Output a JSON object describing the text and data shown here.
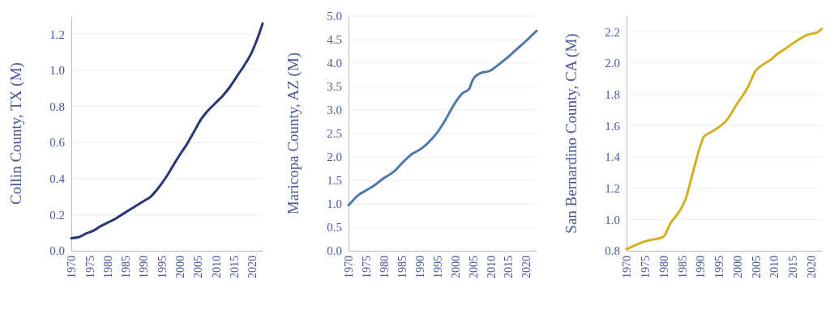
{
  "chart_data": [
    {
      "type": "line",
      "ylabel": "Collin County, TX (M)",
      "xlim": [
        1970,
        2023
      ],
      "xticks": [
        1970,
        1975,
        1980,
        1985,
        1990,
        1995,
        2000,
        2005,
        2010,
        2015,
        2020
      ],
      "ylim": [
        0,
        1.3
      ],
      "yticks": [
        {
          "value": 0,
          "label": "0.0"
        },
        0.2,
        0.4,
        0.6,
        0.8,
        {
          "value": 1,
          "label": "1.0"
        },
        1.2
      ],
      "grid": "y",
      "x": [
        1970,
        1972,
        1974,
        1976,
        1978,
        1980,
        1982,
        1984,
        1986,
        1988,
        1990,
        1992,
        1994,
        1996,
        1998,
        2000,
        2002,
        2004,
        2006,
        2008,
        2010,
        2012,
        2014,
        2016,
        2018,
        2020,
        2022,
        2023
      ],
      "series": [
        {
          "color": "#2b3577",
          "values": [
            0.07,
            0.075,
            0.095,
            0.11,
            0.135,
            0.155,
            0.175,
            0.2,
            0.225,
            0.25,
            0.275,
            0.3,
            0.345,
            0.4,
            0.465,
            0.53,
            0.59,
            0.66,
            0.73,
            0.78,
            0.82,
            0.86,
            0.91,
            0.97,
            1.03,
            1.1,
            1.2,
            1.26
          ]
        }
      ]
    },
    {
      "type": "line",
      "ylabel": "Maricopa County, AZ (M)",
      "xlim": [
        1970,
        2023
      ],
      "xticks": [
        1970,
        1975,
        1980,
        1985,
        1990,
        1995,
        2000,
        2005,
        2010,
        2015,
        2020
      ],
      "ylim": [
        0,
        5
      ],
      "yticks": [
        {
          "value": 0,
          "label": "0.0"
        },
        0.5,
        {
          "value": 1,
          "label": "1.0"
        },
        1.5,
        {
          "value": 2,
          "label": "2.0"
        },
        2.5,
        {
          "value": 3,
          "label": "3.0"
        },
        3.5,
        {
          "value": 4,
          "label": "4.0"
        },
        4.5,
        {
          "value": 5,
          "label": "5.0"
        }
      ],
      "grid": "y",
      "x": [
        1970,
        1973,
        1975,
        1977,
        1980,
        1983,
        1985,
        1988,
        1990,
        1992,
        1995,
        1997,
        2000,
        2002,
        2004,
        2005,
        2007,
        2010,
        2012,
        2015,
        2017,
        2020,
        2023
      ],
      "series": [
        {
          "color": "#4f79ad",
          "values": [
            0.97,
            1.2,
            1.29,
            1.38,
            1.55,
            1.7,
            1.86,
            2.07,
            2.15,
            2.27,
            2.52,
            2.75,
            3.15,
            3.35,
            3.45,
            3.64,
            3.78,
            3.84,
            3.95,
            4.13,
            4.27,
            4.47,
            4.69
          ]
        }
      ]
    },
    {
      "type": "line",
      "ylabel": "San Bernardino County, CA (M)",
      "xlim": [
        1970,
        2023
      ],
      "xticks": [
        1970,
        1975,
        1980,
        1985,
        1990,
        1995,
        2000,
        2005,
        2010,
        2015,
        2020
      ],
      "ylim": [
        0.8,
        2.3
      ],
      "yticks": [
        0.8,
        {
          "value": 1,
          "label": "1.0"
        },
        1.2,
        1.4,
        1.6,
        1.8,
        {
          "value": 2,
          "label": "2.0"
        },
        2.2
      ],
      "grid": "y",
      "x": [
        1970,
        1975,
        1980,
        1982,
        1984,
        1986,
        1988,
        1990,
        1991,
        1993,
        1995,
        1997,
        2000,
        2003,
        2005,
        2007,
        2009,
        2011,
        2013,
        2016,
        2019,
        2022,
        2023
      ],
      "series": [
        {
          "color": "#d4b021",
          "values": [
            0.81,
            0.86,
            0.89,
            0.98,
            1.04,
            1.13,
            1.3,
            1.47,
            1.53,
            1.56,
            1.59,
            1.63,
            1.74,
            1.85,
            1.95,
            1.99,
            2.02,
            2.06,
            2.09,
            2.14,
            2.18,
            2.2,
            2.22
          ]
        }
      ]
    }
  ]
}
